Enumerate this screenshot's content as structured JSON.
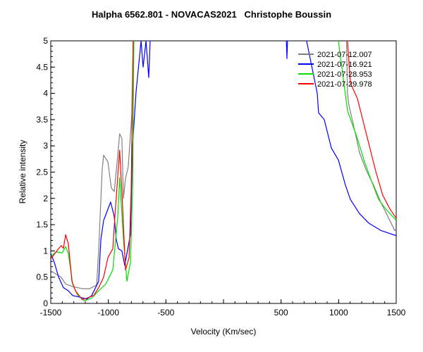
{
  "chart_data": {
    "type": "line",
    "title": "Halpha 6562.801 - NOVACAS2021   Christophe Boussin",
    "xlabel": "Velocity (Km/sec)",
    "ylabel": "Relative intensity",
    "xlim": [
      -1500,
      1500
    ],
    "ylim": [
      0,
      5
    ],
    "xticks": [
      -1500,
      -1000,
      -500,
      500,
      1000,
      1500
    ],
    "xtick_labels": [
      "-1500",
      "-1000",
      "-500",
      "500",
      "1000",
      "1500"
    ],
    "yticks": [
      0,
      0.5,
      1,
      1.5,
      2,
      2.5,
      3,
      3.5,
      4,
      4.5,
      5
    ],
    "ytick_labels": [
      "0",
      "0.5",
      "1",
      "1.5",
      "2",
      "2.5",
      "3",
      "3.5",
      "4",
      "4.5",
      "5"
    ],
    "grid": false,
    "legend_position": "top-right",
    "series": [
      {
        "name": "2021-07-12.007",
        "color": "#808080",
        "points": [
          [
            -1500,
            0.62
          ],
          [
            -1410,
            0.5
          ],
          [
            -1371,
            0.37
          ],
          [
            -1310,
            0.32
          ],
          [
            -1225,
            0.28
          ],
          [
            -1163,
            0.28
          ],
          [
            -1102,
            0.35
          ],
          [
            -1084,
            1.0
          ],
          [
            -1053,
            2.56
          ],
          [
            -1041,
            2.82
          ],
          [
            -1004,
            2.7
          ],
          [
            -974,
            2.2
          ],
          [
            -949,
            2.13
          ],
          [
            -918,
            2.83
          ],
          [
            -902,
            3.23
          ],
          [
            -882,
            3.14
          ],
          [
            -869,
            2.0
          ],
          [
            -851,
            2.38
          ],
          [
            -827,
            2.6
          ],
          [
            -796,
            3.6
          ],
          [
            -784,
            5.0
          ],
          [
            -770,
            6
          ],
          [
            1060,
            6
          ],
          [
            1077,
            4.0
          ],
          [
            1090,
            3.77
          ],
          [
            1139,
            3.3
          ],
          [
            1181,
            2.87
          ],
          [
            1243,
            2.52
          ],
          [
            1304,
            2.25
          ],
          [
            1365,
            1.93
          ],
          [
            1426,
            1.66
          ],
          [
            1487,
            1.39
          ],
          [
            1500,
            1.42
          ]
        ]
      },
      {
        "name": "2021-07-16.921",
        "color": "#0000ff",
        "points": [
          [
            -1500,
            0.95
          ],
          [
            -1469,
            0.78
          ],
          [
            -1433,
            0.51
          ],
          [
            -1390,
            0.3
          ],
          [
            -1347,
            0.24
          ],
          [
            -1310,
            0.15
          ],
          [
            -1249,
            0.12
          ],
          [
            -1188,
            0.08
          ],
          [
            -1145,
            0.15
          ],
          [
            -1084,
            0.42
          ],
          [
            -1065,
            1.22
          ],
          [
            -1041,
            1.58
          ],
          [
            -980,
            1.93
          ],
          [
            -949,
            1.66
          ],
          [
            -931,
            1.22
          ],
          [
            -912,
            1.04
          ],
          [
            -882,
            1.0
          ],
          [
            -857,
            0.72
          ],
          [
            -839,
            0.95
          ],
          [
            -808,
            1.31
          ],
          [
            -790,
            3.0
          ],
          [
            -759,
            4.03
          ],
          [
            -716,
            5.0
          ],
          [
            -698,
            4.5
          ],
          [
            -673,
            5.0
          ],
          [
            -649,
            4.3
          ],
          [
            -637,
            5.0
          ],
          [
            -630,
            6
          ],
          [
            540,
            6
          ],
          [
            546,
            5.0
          ],
          [
            551,
            4.66
          ],
          [
            556,
            5.0
          ],
          [
            560,
            6
          ],
          [
            715,
            6
          ],
          [
            722,
            5.0
          ],
          [
            814,
            4.0
          ],
          [
            826,
            3.63
          ],
          [
            875,
            3.5
          ],
          [
            937,
            2.96
          ],
          [
            998,
            2.73
          ],
          [
            1059,
            2.25
          ],
          [
            1102,
            1.98
          ],
          [
            1181,
            1.71
          ],
          [
            1261,
            1.53
          ],
          [
            1365,
            1.39
          ],
          [
            1500,
            1.29
          ]
        ]
      },
      {
        "name": "2021-07-28.953",
        "color": "#00e000",
        "points": [
          [
            -1500,
            0.9
          ],
          [
            -1451,
            0.98
          ],
          [
            -1402,
            0.96
          ],
          [
            -1371,
            1.08
          ],
          [
            -1347,
            0.95
          ],
          [
            -1310,
            0.37
          ],
          [
            -1267,
            0.16
          ],
          [
            -1206,
            0.05
          ],
          [
            -1145,
            0.1
          ],
          [
            -1084,
            0.24
          ],
          [
            -1022,
            0.37
          ],
          [
            -961,
            0.64
          ],
          [
            -918,
            1.66
          ],
          [
            -902,
            2.4
          ],
          [
            -869,
            1.22
          ],
          [
            -839,
            0.42
          ],
          [
            -808,
            0.78
          ],
          [
            -790,
            2.13
          ],
          [
            -778,
            5.0
          ],
          [
            -770,
            6
          ],
          [
            990,
            6
          ],
          [
            998,
            5.0
          ],
          [
            1077,
            3.67
          ],
          [
            1163,
            3.14
          ],
          [
            1224,
            2.7
          ],
          [
            1286,
            2.33
          ],
          [
            1347,
            1.98
          ],
          [
            1408,
            1.8
          ],
          [
            1500,
            1.58
          ]
        ]
      },
      {
        "name": "2021-07-29.978",
        "color": "#ff0000",
        "points": [
          [
            -1500,
            0.85
          ],
          [
            -1433,
            1.04
          ],
          [
            -1408,
            1.1
          ],
          [
            -1390,
            1.05
          ],
          [
            -1371,
            1.31
          ],
          [
            -1347,
            1.13
          ],
          [
            -1316,
            0.42
          ],
          [
            -1286,
            0.24
          ],
          [
            -1225,
            0.07
          ],
          [
            -1163,
            0.12
          ],
          [
            -1127,
            0.15
          ],
          [
            -1084,
            0.3
          ],
          [
            -1041,
            0.5
          ],
          [
            -1004,
            0.87
          ],
          [
            -961,
            1.04
          ],
          [
            -943,
            1.66
          ],
          [
            -902,
            2.92
          ],
          [
            -882,
            2.13
          ],
          [
            -851,
            0.64
          ],
          [
            -820,
            0.87
          ],
          [
            -802,
            2.13
          ],
          [
            -784,
            5.0
          ],
          [
            -775,
            6
          ],
          [
            1070,
            6
          ],
          [
            1077,
            5.0
          ],
          [
            1102,
            4.2
          ],
          [
            1163,
            3.9
          ],
          [
            1261,
            3.05
          ],
          [
            1322,
            2.52
          ],
          [
            1383,
            2.06
          ],
          [
            1445,
            1.8
          ],
          [
            1500,
            1.62
          ]
        ]
      }
    ]
  }
}
